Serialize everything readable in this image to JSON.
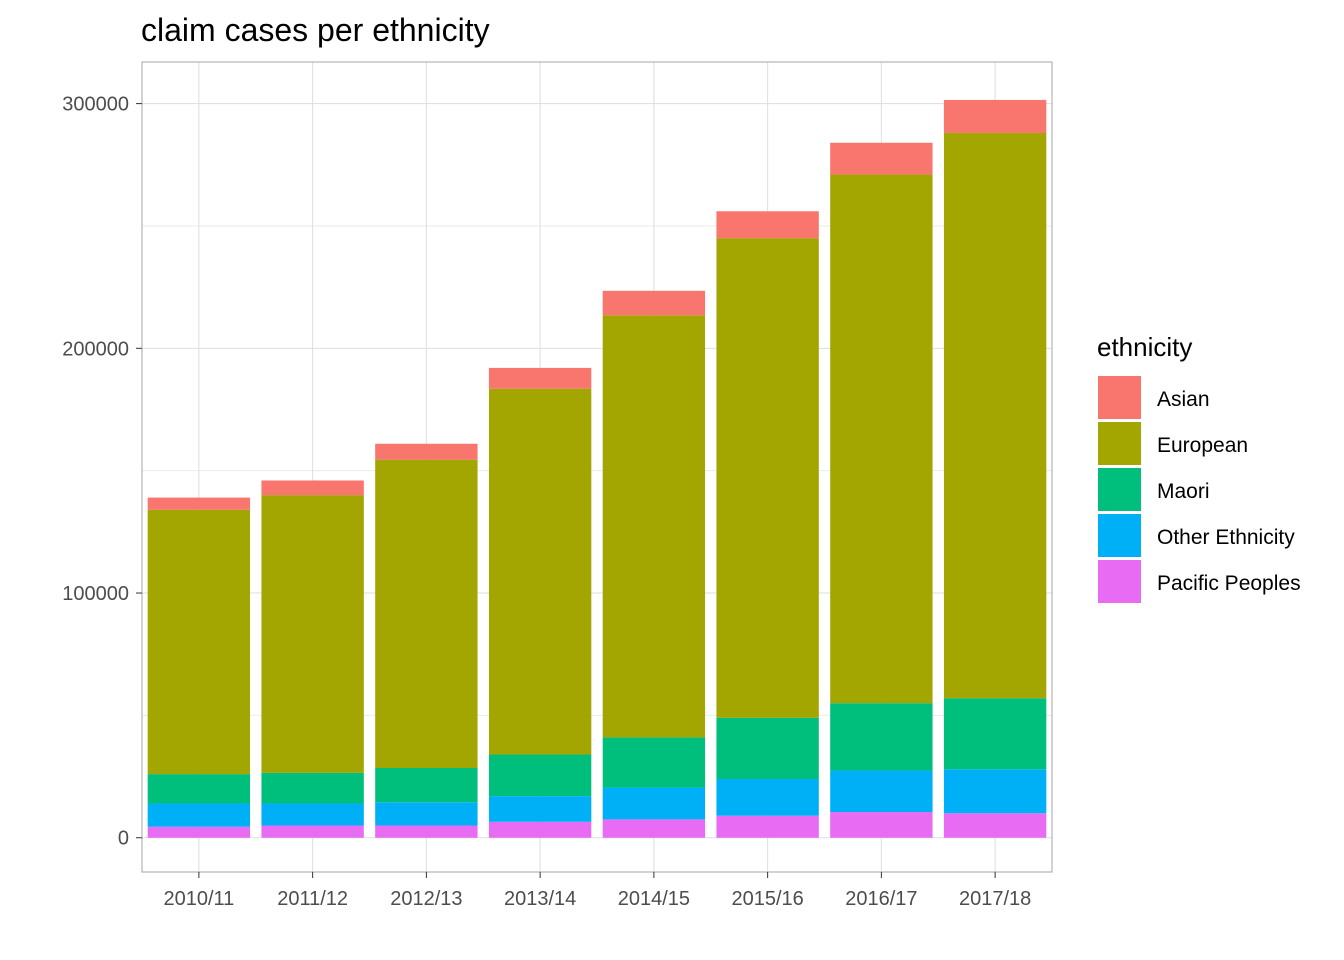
{
  "chart_data": {
    "type": "bar",
    "stacked": true,
    "title": "claim cases per ethnicity",
    "xlabel": "",
    "ylabel": "",
    "categories": [
      "2010/11",
      "2011/12",
      "2012/13",
      "2013/14",
      "2014/15",
      "2015/16",
      "2016/17",
      "2017/18"
    ],
    "ylim": [
      -14000,
      317000
    ],
    "yticks": [
      0,
      100000,
      200000,
      300000
    ],
    "ytick_labels": [
      "0",
      "100000",
      "200000",
      "300000"
    ],
    "grid": true,
    "legend": {
      "title": "ethnicity",
      "position": "right"
    },
    "series": [
      {
        "name": "Pacific Peoples",
        "color": "#E76BF3",
        "values": [
          4500,
          5000,
          5000,
          6500,
          7500,
          9000,
          10500,
          10000
        ]
      },
      {
        "name": "Other Ethnicity",
        "color": "#00B0F6",
        "values": [
          9500,
          9000,
          9500,
          10500,
          13000,
          15000,
          17000,
          18000
        ]
      },
      {
        "name": "Maori",
        "color": "#00BF7D",
        "values": [
          12000,
          12500,
          14000,
          17000,
          20500,
          25000,
          27500,
          29000
        ]
      },
      {
        "name": "European",
        "color": "#A3A500",
        "values": [
          108000,
          113500,
          126000,
          149500,
          172500,
          196000,
          216000,
          231000
        ]
      },
      {
        "name": "Asian",
        "color": "#F8766D",
        "values": [
          5000,
          6000,
          6500,
          8500,
          10000,
          11000,
          13000,
          13500
        ]
      }
    ],
    "legend_order": [
      "Asian",
      "European",
      "Maori",
      "Other Ethnicity",
      "Pacific Peoples"
    ]
  }
}
